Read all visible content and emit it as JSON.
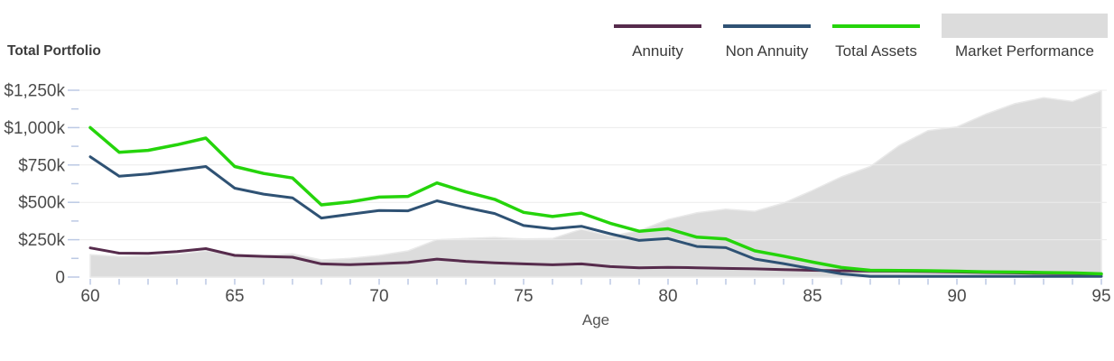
{
  "header": {
    "title": "Total Portfolio"
  },
  "legend": {
    "items": [
      {
        "id": "annuity",
        "label": "Annuity",
        "color": "#562b4c",
        "swatch": "line"
      },
      {
        "id": "non-annuity",
        "label": "Non Annuity",
        "color": "#2f5274",
        "swatch": "line"
      },
      {
        "id": "total-assets",
        "label": "Total Assets",
        "color": "#25d40b",
        "swatch": "line"
      },
      {
        "id": "market-performance",
        "label": "Market Performance",
        "color": "#dcdcdc",
        "swatch": "box"
      }
    ]
  },
  "chart_data": {
    "type": "line",
    "title": "Total Portfolio",
    "xlabel": "Age",
    "ylabel": "",
    "xlim": [
      60,
      95
    ],
    "ylim": [
      0,
      1250
    ],
    "grid": true,
    "legend_position": "top-right",
    "units": "thousands of dollars",
    "x": [
      60,
      61,
      62,
      63,
      64,
      65,
      66,
      67,
      68,
      69,
      70,
      71,
      72,
      73,
      74,
      75,
      76,
      77,
      78,
      79,
      80,
      81,
      82,
      83,
      84,
      85,
      86,
      87,
      88,
      89,
      90,
      91,
      92,
      93,
      94,
      95
    ],
    "x_tick_labels": [
      "60",
      "65",
      "70",
      "75",
      "80",
      "85",
      "90",
      "95"
    ],
    "x_label_ticks": [
      60,
      65,
      70,
      75,
      80,
      85,
      90,
      95
    ],
    "y_ticks": [
      0,
      250,
      500,
      750,
      1000,
      1250
    ],
    "y_tick_labels": [
      "0",
      "$250k",
      "$500k",
      "$750k",
      "$1,000k",
      "$1,250k"
    ],
    "y_minor_ticks": [
      125,
      375,
      625,
      875,
      1125
    ],
    "series": [
      {
        "name": "Market Performance",
        "type": "area",
        "color": "#dcdcdc",
        "values": [
          150,
          138,
          142,
          152,
          175,
          152,
          144,
          155,
          115,
          125,
          145,
          175,
          250,
          258,
          265,
          255,
          258,
          320,
          275,
          310,
          385,
          430,
          455,
          440,
          495,
          580,
          670,
          740,
          880,
          980,
          1005,
          1090,
          1160,
          1200,
          1175,
          1245
        ]
      },
      {
        "name": "Annuity",
        "type": "line",
        "color": "#562b4c",
        "values": [
          195,
          160,
          158,
          170,
          190,
          145,
          138,
          133,
          88,
          83,
          90,
          97,
          120,
          105,
          95,
          88,
          82,
          88,
          70,
          62,
          65,
          62,
          58,
          55,
          50,
          45,
          42,
          40,
          39,
          37,
          34,
          30,
          28,
          25,
          23,
          17
        ]
      },
      {
        "name": "Non Annuity",
        "type": "line",
        "color": "#2f5274",
        "values": [
          805,
          675,
          690,
          715,
          740,
          595,
          555,
          530,
          395,
          420,
          445,
          443,
          510,
          465,
          425,
          345,
          323,
          340,
          290,
          245,
          258,
          205,
          197,
          121,
          90,
          55,
          22,
          5,
          5,
          5,
          5,
          5,
          5,
          5,
          5,
          5
        ]
      },
      {
        "name": "Total Assets",
        "type": "line",
        "color": "#25d40b",
        "values": [
          1000,
          835,
          848,
          885,
          930,
          740,
          693,
          663,
          483,
          503,
          535,
          540,
          630,
          570,
          520,
          433,
          405,
          428,
          360,
          307,
          323,
          267,
          255,
          176,
          140,
          100,
          64,
          45,
          44,
          42,
          39,
          35,
          33,
          30,
          28,
          22
        ]
      }
    ],
    "colors": {
      "gridline": "#ececec",
      "tick": "#bcc9e4",
      "axis_text": "#4b4b4b"
    }
  }
}
